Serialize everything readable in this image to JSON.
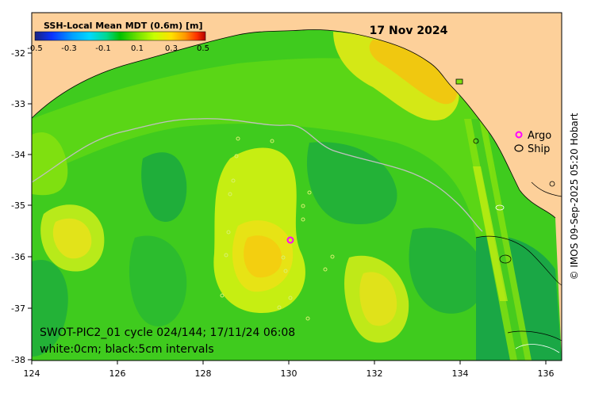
{
  "title": "17 Nov 2024",
  "colorbar": {
    "label": "SSH-Local Mean MDT (0.6m) [m]",
    "ticks": [
      "-0.5",
      "-0.3",
      "-0.1",
      "0.1",
      "0.3",
      "0.5"
    ],
    "colors": [
      "#1a237e",
      "#0a33ff",
      "#00a0ff",
      "#00d8ff",
      "#00d890",
      "#00c000",
      "#6fe000",
      "#c8ff00",
      "#ffe000",
      "#ff9800",
      "#ff3000",
      "#b00000"
    ]
  },
  "legend": {
    "argo": {
      "label": "Argo",
      "marker": "o",
      "color": "#ff00ff"
    },
    "ship": {
      "label": "Ship",
      "marker": "o",
      "color": "#000000"
    }
  },
  "annotation": {
    "line1": "SWOT-PIC2_01 cycle 024/144; 17/11/24 06:08",
    "line2": "white:0cm; black:5cm intervals"
  },
  "axes": {
    "x_ticks": [
      "124",
      "126",
      "128",
      "130",
      "132",
      "134",
      "136"
    ],
    "y_ticks": [
      "-32",
      "-33",
      "-34",
      "-35",
      "-36",
      "-37",
      "-38"
    ]
  },
  "colors": {
    "land": "#fdd09a",
    "ocean_base": "#3fcb1e",
    "ocean_low": "#1fae3a",
    "ocean_mid": "#78e00a",
    "ocean_high": "#c8ef16",
    "ocean_peak": "#f0d800"
  },
  "copyright": "© IMOS 09-Sep-2025 05:20 Hobart"
}
